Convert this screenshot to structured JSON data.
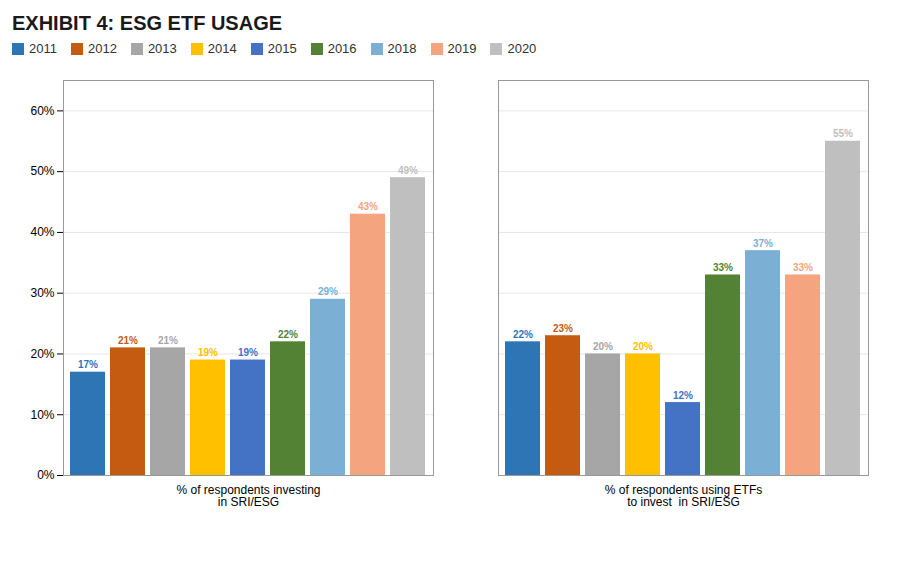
{
  "chart_data": {
    "type": "bar",
    "title": "EXHIBIT 4: ESG ETF USAGE",
    "categories": [
      "% of respondents investing\nin SRI/ESG",
      "% of respondents using ETFs\nto invest  in SRI/ESG"
    ],
    "series": [
      {
        "name": "2011",
        "color": "#2E75B6",
        "values": [
          17,
          22
        ],
        "value_labels": [
          "17%",
          "22%"
        ]
      },
      {
        "name": "2012",
        "color": "#C55A11",
        "values": [
          21,
          23
        ],
        "value_labels": [
          "21%",
          "23%"
        ]
      },
      {
        "name": "2013",
        "color": "#A6A6A6",
        "values": [
          21,
          20
        ],
        "value_labels": [
          "21%",
          "20%"
        ]
      },
      {
        "name": "2014",
        "color": "#FFC000",
        "values": [
          19,
          20
        ],
        "value_labels": [
          "19%",
          "20%"
        ]
      },
      {
        "name": "2015",
        "color": "#4472C4",
        "values": [
          19,
          12
        ],
        "value_labels": [
          "19%",
          "12%"
        ]
      },
      {
        "name": "2016",
        "color": "#548235",
        "values": [
          22,
          33
        ],
        "value_labels": [
          "22%",
          "33%"
        ]
      },
      {
        "name": "2018",
        "color": "#7BAFD4",
        "values": [
          29,
          37
        ],
        "value_labels": [
          "29%",
          "37%"
        ]
      },
      {
        "name": "2019",
        "color": "#F4A580",
        "values": [
          43,
          33
        ],
        "value_labels": [
          "43%",
          "33%"
        ]
      },
      {
        "name": "2020",
        "color": "#BFBFBF",
        "values": [
          49,
          55
        ],
        "value_labels": [
          "49%",
          "55%"
        ]
      }
    ],
    "ylim": [
      0,
      65
    ],
    "yticks": [
      {
        "value": 0,
        "label": "0%"
      },
      {
        "value": 10,
        "label": "10%"
      },
      {
        "value": 20,
        "label": "20%"
      },
      {
        "value": 30,
        "label": "30%"
      },
      {
        "value": 40,
        "label": "40%"
      },
      {
        "value": 50,
        "label": "50%"
      },
      {
        "value": 60,
        "label": "60%"
      }
    ],
    "grid": true,
    "legend": "upper left",
    "data_labels": true
  }
}
